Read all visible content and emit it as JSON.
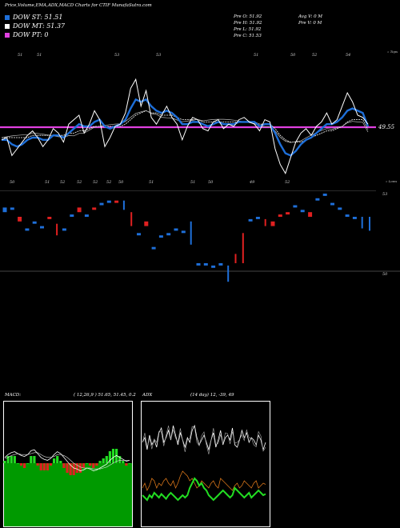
{
  "header": {
    "title": "Price,Volume,EMA,ADX,MACD Charts for CTIF MunafaSutra.com"
  },
  "legend": [
    {
      "label": "DOW ST: 51.51",
      "color": "#1e6fd9"
    },
    {
      "label": "DOW MT: 51.37",
      "color": "#ffffff"
    },
    {
      "label": "DOW PT: 0",
      "color": "#e040e0"
    }
  ],
  "ohlc": {
    "open": "Pre   O: 51.92",
    "high": "Pre   H: 51.92",
    "low": "Pre   L: 51.92",
    "close": "Pre   C: 51.53",
    "avg_vol": "Avg V: 0   M",
    "pre_vol": "Pre   V: 0   M"
  },
  "price_panel": {
    "tops_label": "« Tops",
    "lows_label": "« Lows",
    "last_price_label": "49.55",
    "top_tick_labels": [
      "51",
      "51",
      "53",
      "53",
      "51",
      "50",
      "52",
      "54"
    ],
    "bottom_tick_labels": [
      "50",
      "51",
      "52",
      "52",
      "52",
      "52",
      "50",
      "51",
      "51",
      "50",
      "49",
      "52"
    ]
  },
  "box_panel": {
    "scale_top": "53",
    "scale_bottom": "50"
  },
  "macd": {
    "label": "MACD:",
    "params": "( 12,26,9 ) 51.65, 51.45, 0.2"
  },
  "adx": {
    "label": "ADX",
    "params": "(14 day) 12, -39, 49"
  },
  "chart_data": {
    "type": "line",
    "series": [
      {
        "values": [
          50.9,
          51.0,
          50.2,
          50.5,
          50.8,
          51.1,
          51.3,
          51.0,
          50.6,
          50.9,
          51.4,
          51.2,
          50.8,
          51.6,
          51.8,
          52.0,
          51.2,
          51.6,
          52.2,
          51.8,
          50.6,
          51.0,
          51.5,
          51.6,
          52.1,
          53.2,
          53.6,
          52.4,
          53.1,
          51.9,
          51.6,
          52.0,
          52.4,
          51.9,
          51.6,
          50.9,
          51.5,
          51.9,
          51.8,
          51.4,
          51.3,
          51.7,
          51.8,
          51.4,
          51.6,
          51.5,
          51.8,
          51.9,
          51.7,
          51.6,
          51.3,
          51.8,
          51.7,
          50.5,
          49.8,
          49.4,
          50.1,
          50.8,
          51.2,
          51.4,
          51.1,
          51.5,
          51.7,
          52.1,
          51.6,
          51.8,
          52.4,
          53.0,
          52.6,
          52.0,
          51.9,
          51.6
        ]
      },
      {
        "name": "DOW ST",
        "values": [
          50.9,
          50.9,
          50.7,
          50.6,
          50.7,
          50.9,
          51.0,
          51.0,
          50.9,
          50.9,
          51.1,
          51.1,
          51.0,
          51.2,
          51.4,
          51.6,
          51.5,
          51.5,
          51.7,
          51.8,
          51.5,
          51.4,
          51.5,
          51.6,
          51.8,
          52.3,
          52.7,
          52.6,
          52.7,
          52.4,
          52.2,
          52.1,
          52.2,
          52.1,
          51.9,
          51.6,
          51.6,
          51.7,
          51.7,
          51.6,
          51.5,
          51.6,
          51.7,
          51.6,
          51.6,
          51.6,
          51.7,
          51.7,
          51.7,
          51.7,
          51.5,
          51.6,
          51.6,
          51.2,
          50.7,
          50.3,
          50.2,
          50.4,
          50.7,
          50.9,
          51.0,
          51.2,
          51.4,
          51.6,
          51.6,
          51.7,
          51.9,
          52.2,
          52.3,
          52.2,
          52.1,
          51.5
        ]
      },
      {
        "name": "DOW MT",
        "values": [
          51.0,
          51.0,
          51.0,
          51.0,
          51.0,
          51.0,
          51.1,
          51.1,
          51.1,
          51.1,
          51.1,
          51.1,
          51.1,
          51.2,
          51.2,
          51.3,
          51.3,
          51.4,
          51.5,
          51.5,
          51.5,
          51.5,
          51.5,
          51.5,
          51.6,
          51.8,
          52.0,
          52.1,
          52.2,
          52.1,
          52.1,
          52.0,
          52.0,
          52.0,
          51.9,
          51.8,
          51.8,
          51.8,
          51.8,
          51.7,
          51.7,
          51.7,
          51.7,
          51.7,
          51.7,
          51.7,
          51.7,
          51.7,
          51.7,
          51.7,
          51.6,
          51.6,
          51.6,
          51.4,
          51.1,
          50.9,
          50.8,
          50.8,
          50.8,
          50.9,
          51.0,
          51.1,
          51.2,
          51.3,
          51.3,
          51.4,
          51.5,
          51.7,
          51.8,
          51.8,
          51.8,
          51.37
        ]
      },
      {
        "name": "DOW PT",
        "values": [
          50.75
        ]
      }
    ],
    "box_bars": [
      {
        "o": 52.4,
        "c": 52.2,
        "col": "#1e6fd9"
      },
      {
        "o": 52.3,
        "c": 52.4,
        "col": "#1e6fd9"
      },
      {
        "o": 52.0,
        "c": 51.8,
        "col": "#e02020"
      },
      {
        "o": 51.5,
        "c": 51.4,
        "col": "#1e6fd9"
      },
      {
        "o": 51.8,
        "c": 51.7,
        "col": "#1e6fd9"
      },
      {
        "o": 51.6,
        "c": 51.5,
        "col": "#1e6fd9"
      },
      {
        "o": 51.9,
        "c": 52.0,
        "col": "#e02020"
      },
      {
        "o": 51.7,
        "c": 51.2,
        "col": "#e02020"
      },
      {
        "o": 51.5,
        "c": 51.4,
        "col": "#1e6fd9"
      },
      {
        "o": 52.1,
        "c": 52.0,
        "col": "#1e6fd9"
      },
      {
        "o": 52.4,
        "c": 52.2,
        "col": "#e02020"
      },
      {
        "o": 52.1,
        "c": 52.0,
        "col": "#1e6fd9"
      },
      {
        "o": 52.3,
        "c": 52.4,
        "col": "#e02020"
      },
      {
        "o": 52.6,
        "c": 52.5,
        "col": "#1e6fd9"
      },
      {
        "o": 52.7,
        "c": 52.6,
        "col": "#1e6fd9"
      },
      {
        "o": 52.7,
        "c": 52.6,
        "col": "#e02020"
      },
      {
        "o": 52.7,
        "c": 52.3,
        "col": "#1e6fd9"
      },
      {
        "o": 52.2,
        "c": 51.6,
        "col": "#e02020"
      },
      {
        "o": 51.3,
        "c": 51.2,
        "col": "#1e6fd9"
      },
      {
        "o": 51.8,
        "c": 51.6,
        "col": "#e02020"
      },
      {
        "o": 50.7,
        "c": 50.6,
        "col": "#1e6fd9"
      },
      {
        "o": 51.2,
        "c": 51.1,
        "col": "#1e6fd9"
      },
      {
        "o": 51.3,
        "c": 51.2,
        "col": "#1e6fd9"
      },
      {
        "o": 51.5,
        "c": 51.4,
        "col": "#1e6fd9"
      },
      {
        "o": 51.4,
        "c": 51.3,
        "col": "#1e6fd9"
      },
      {
        "o": 51.8,
        "c": 50.8,
        "col": "#1e6fd9"
      },
      {
        "o": 50.0,
        "c": 49.9,
        "col": "#1e6fd9"
      },
      {
        "o": 50.0,
        "c": 49.9,
        "col": "#1e6fd9"
      },
      {
        "o": 49.9,
        "c": 49.8,
        "col": "#1e6fd9"
      },
      {
        "o": 50.0,
        "c": 49.9,
        "col": "#1e6fd9"
      },
      {
        "o": 49.9,
        "c": 49.2,
        "col": "#1e6fd9"
      },
      {
        "o": 50.4,
        "c": 50.0,
        "col": "#e02020"
      },
      {
        "o": 51.3,
        "c": 50.0,
        "col": "#e02020"
      },
      {
        "o": 51.9,
        "c": 51.8,
        "col": "#1e6fd9"
      },
      {
        "o": 52.0,
        "c": 51.9,
        "col": "#1e6fd9"
      },
      {
        "o": 51.9,
        "c": 51.6,
        "col": "#e02020"
      },
      {
        "o": 51.8,
        "c": 51.6,
        "col": "#e02020"
      },
      {
        "o": 52.1,
        "c": 52.0,
        "col": "#e02020"
      },
      {
        "o": 52.2,
        "c": 52.1,
        "col": "#e02020"
      },
      {
        "o": 52.5,
        "c": 52.4,
        "col": "#1e6fd9"
      },
      {
        "o": 52.3,
        "c": 52.2,
        "col": "#1e6fd9"
      },
      {
        "o": 52.2,
        "c": 52.0,
        "col": "#e02020"
      },
      {
        "o": 52.8,
        "c": 52.7,
        "col": "#1e6fd9"
      },
      {
        "o": 53.0,
        "c": 52.9,
        "col": "#1e6fd9"
      },
      {
        "o": 52.6,
        "c": 52.5,
        "col": "#1e6fd9"
      },
      {
        "o": 52.4,
        "c": 52.3,
        "col": "#1e6fd9"
      },
      {
        "o": 52.1,
        "c": 52.0,
        "col": "#1e6fd9"
      },
      {
        "o": 52.0,
        "c": 51.9,
        "col": "#1e6fd9"
      },
      {
        "o": 52.0,
        "c": 51.5,
        "col": "#1e6fd9"
      },
      {
        "o": 52.0,
        "c": 51.4,
        "col": "#1e6fd9"
      }
    ],
    "macd_series": [
      {
        "name": "MACD",
        "values": [
          0.6,
          0.9,
          1.1,
          1.2,
          1.0,
          0.8,
          0.7,
          0.9,
          1.3,
          1.4,
          1.0,
          0.6,
          0.4,
          0.3,
          0.5,
          0.9,
          1.2,
          1.0,
          0.6,
          0.2,
          -0.2,
          -0.5,
          -0.6,
          -0.8,
          -0.7,
          -0.5,
          -0.6,
          -0.8,
          -0.7,
          -0.5,
          -0.3,
          -0.1,
          0.3,
          0.6,
          0.8,
          0.6,
          0.4,
          0.2,
          0.3
        ]
      },
      {
        "name": "Signal",
        "values": [
          0.5,
          0.6,
          0.8,
          0.9,
          1.0,
          0.9,
          0.9,
          0.9,
          1.0,
          1.1,
          1.1,
          0.9,
          0.7,
          0.6,
          0.6,
          0.7,
          0.9,
          0.9,
          0.8,
          0.6,
          0.3,
          0.0,
          -0.2,
          -0.4,
          -0.5,
          -0.5,
          -0.5,
          -0.6,
          -0.6,
          -0.6,
          -0.5,
          -0.4,
          -0.2,
          0.0,
          0.2,
          0.3,
          0.3,
          0.3,
          0.3
        ]
      }
    ],
    "adx_series": [
      {
        "name": "DI+",
        "values": [
          68,
          72,
          62,
          74,
          66,
          70,
          64,
          76,
          80,
          68,
          72,
          78,
          70,
          82,
          74,
          66,
          76,
          70,
          64,
          72,
          68,
          78,
          82,
          72,
          66,
          70,
          74,
          68,
          62,
          70,
          76,
          64,
          70,
          78,
          66,
          72,
          74,
          70,
          80,
          66,
          64,
          70,
          78,
          72,
          76,
          68,
          72,
          70,
          66,
          74,
          70,
          62,
          68
        ]
      },
      {
        "name": "DI-",
        "values": [
          30,
          34,
          28,
          32,
          38,
          36,
          30,
          34,
          32,
          36,
          38,
          34,
          32,
          36,
          30,
          34,
          40,
          44,
          42,
          40,
          36,
          38,
          34,
          30,
          32,
          36,
          34,
          32,
          30,
          34,
          36,
          32,
          30,
          38,
          36,
          34,
          32,
          30,
          28,
          32,
          34,
          30,
          32,
          36,
          34,
          32,
          30,
          34,
          36,
          30,
          32,
          34,
          33
        ]
      },
      {
        "name": "ADX",
        "values": [
          24,
          22,
          20,
          24,
          22,
          26,
          24,
          22,
          25,
          23,
          21,
          24,
          26,
          24,
          22,
          20,
          22,
          24,
          22,
          24,
          30,
          34,
          38,
          36,
          32,
          34,
          30,
          28,
          24,
          22,
          20,
          22,
          24,
          26,
          28,
          26,
          24,
          22,
          24,
          30,
          28,
          26,
          24,
          22,
          24,
          26,
          22,
          24,
          26,
          28,
          26,
          24,
          25
        ]
      }
    ]
  }
}
